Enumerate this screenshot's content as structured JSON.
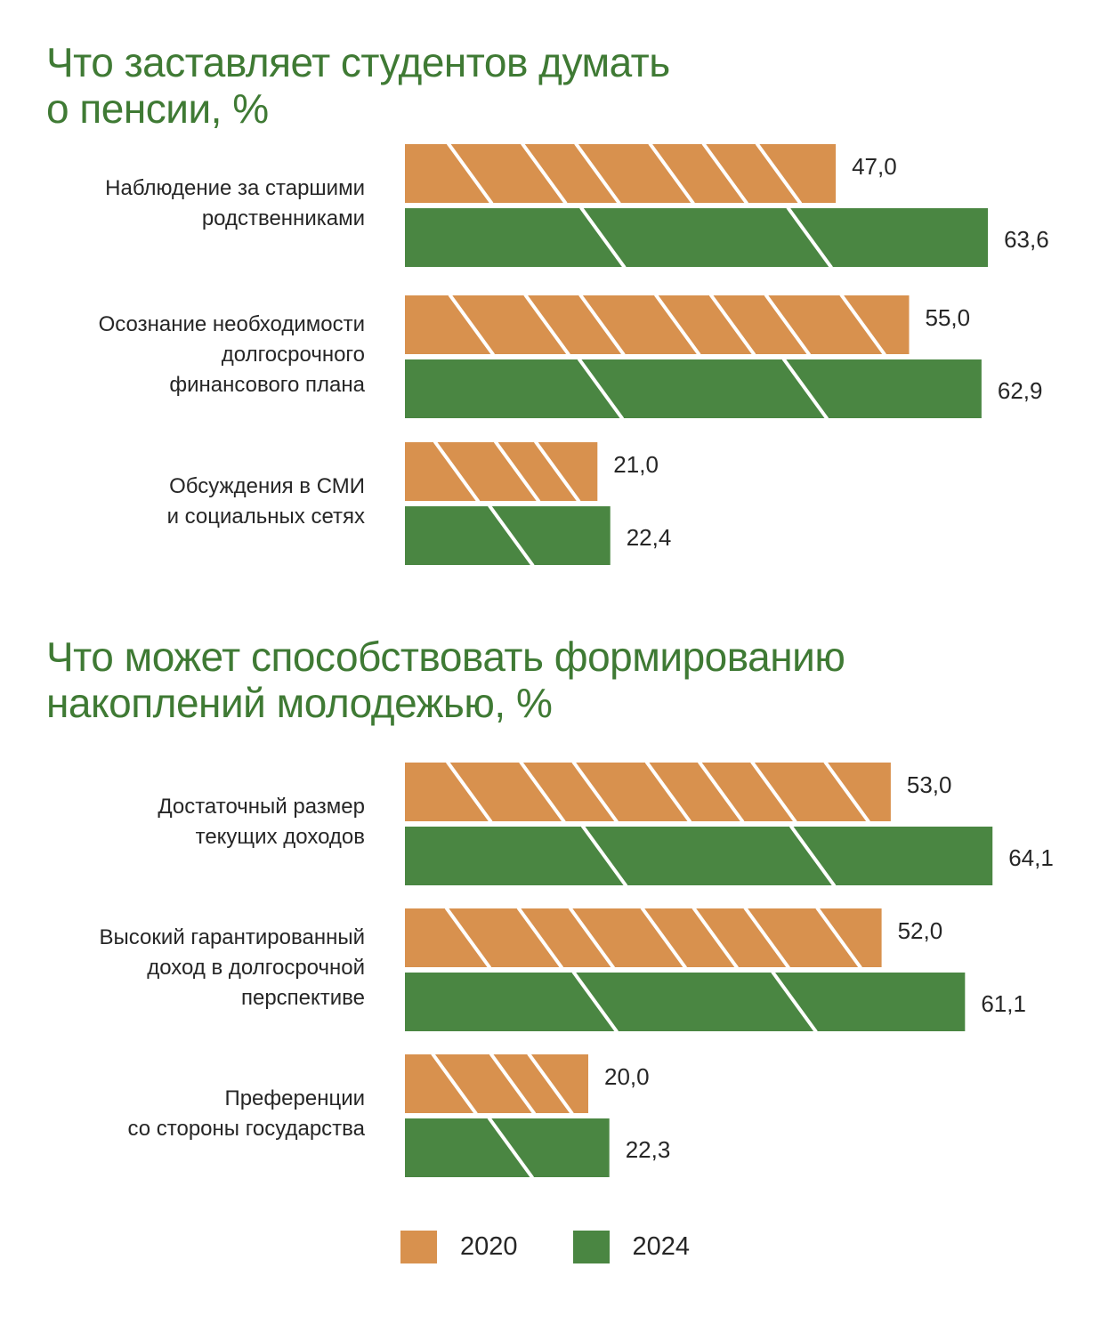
{
  "colors": {
    "title": "#3f7a34",
    "series_2020": "#d8914e",
    "series_2024": "#4a8642",
    "text": "#262626"
  },
  "chart_data": [
    {
      "type": "bar",
      "orientation": "horizontal",
      "title_lines": [
        "Что заставляет студентов думать",
        "о пенсии, %"
      ],
      "category_lines": [
        [
          "Наблюдение за старшими",
          "родственниками"
        ],
        [
          "Осознание необходимости",
          "долгосрочного",
          "финансового плана"
        ],
        [
          "Обсуждения в СМИ",
          "и социальных сетях"
        ]
      ],
      "series": [
        {
          "name": "2020",
          "values": [
            47.0,
            55.0,
            21.0
          ],
          "labels": [
            "47,0",
            "55,0",
            "21,0"
          ]
        },
        {
          "name": "2024",
          "values": [
            63.6,
            62.9,
            22.4
          ],
          "labels": [
            "63,6",
            "62,9",
            "22,4"
          ]
        }
      ]
    },
    {
      "type": "bar",
      "orientation": "horizontal",
      "title_lines": [
        "Что может способствовать формированию",
        "накоплений молодежью, %"
      ],
      "category_lines": [
        [
          "Достаточный размер",
          "текущих доходов"
        ],
        [
          "Высокий гарантированный",
          "доход в долгосрочной",
          "перспективе"
        ],
        [
          "Преференции",
          "со стороны государства"
        ]
      ],
      "series": [
        {
          "name": "2020",
          "values": [
            53.0,
            52.0,
            20.0
          ],
          "labels": [
            "53,0",
            "52,0",
            "20,0"
          ]
        },
        {
          "name": "2024",
          "values": [
            64.1,
            61.1,
            22.3
          ],
          "labels": [
            "64,1",
            "61,1",
            "22,3"
          ]
        }
      ]
    }
  ],
  "legend": [
    {
      "label": "2020",
      "color": "#d8914e"
    },
    {
      "label": "2024",
      "color": "#4a8642"
    }
  ]
}
